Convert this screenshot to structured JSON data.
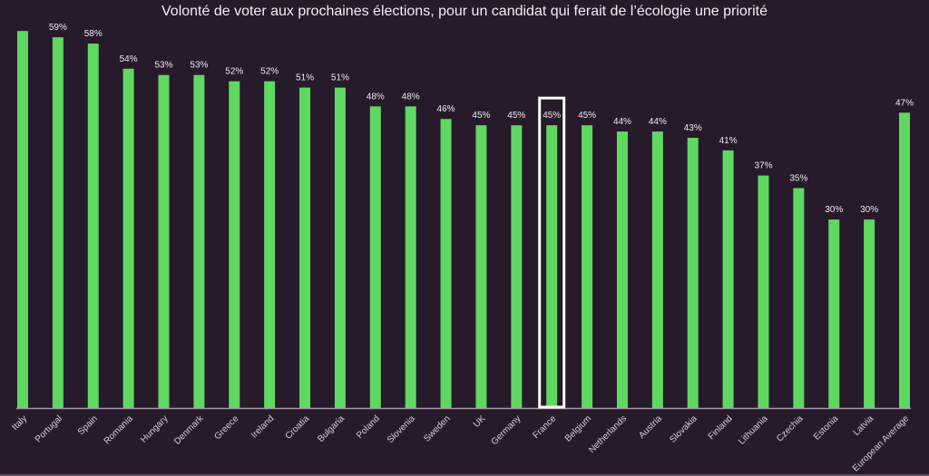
{
  "chart_data": {
    "type": "bar",
    "title": "Volonté de voter aux prochaines élections, pour un candidat qui ferait de l’écologie une priorité",
    "xlabel": "",
    "ylabel": "",
    "ylim": [
      0,
      65
    ],
    "grid": false,
    "legend": "none",
    "categories": [
      "Italy",
      "Portugal",
      "Spain",
      "Romania",
      "Hungary",
      "Denmark",
      "Greece",
      "Ireland",
      "Croatia",
      "Bulgaria",
      "Poland",
      "Slovenia",
      "Sweden",
      "UK",
      "Germany",
      "France",
      "Belgium",
      "Netherlands",
      "Austria",
      "Slovakia",
      "Finland",
      "Lithuania",
      "Czechia",
      "Estonia",
      "Latvia",
      "European Average"
    ],
    "values": [
      60,
      59,
      58,
      54,
      53,
      53,
      52,
      52,
      51,
      51,
      48,
      48,
      46,
      45,
      45,
      45,
      45,
      44,
      44,
      43,
      41,
      37,
      35,
      30,
      30,
      47
    ],
    "data_labels": [
      "",
      "59%",
      "58%",
      "54%",
      "53%",
      "53%",
      "52%",
      "52%",
      "51%",
      "51%",
      "48%",
      "48%",
      "46%",
      "45%",
      "45%",
      "45%",
      "45%",
      "44%",
      "44%",
      "43%",
      "41%",
      "37%",
      "35%",
      "30%",
      "30%",
      "47%"
    ],
    "highlighted_category": "France",
    "colors": {
      "bar": "#5fd861",
      "background": "#271a2b",
      "axis": "#a59aa8",
      "highlight_box": "#ffffff",
      "text": "#eee9ef"
    }
  }
}
